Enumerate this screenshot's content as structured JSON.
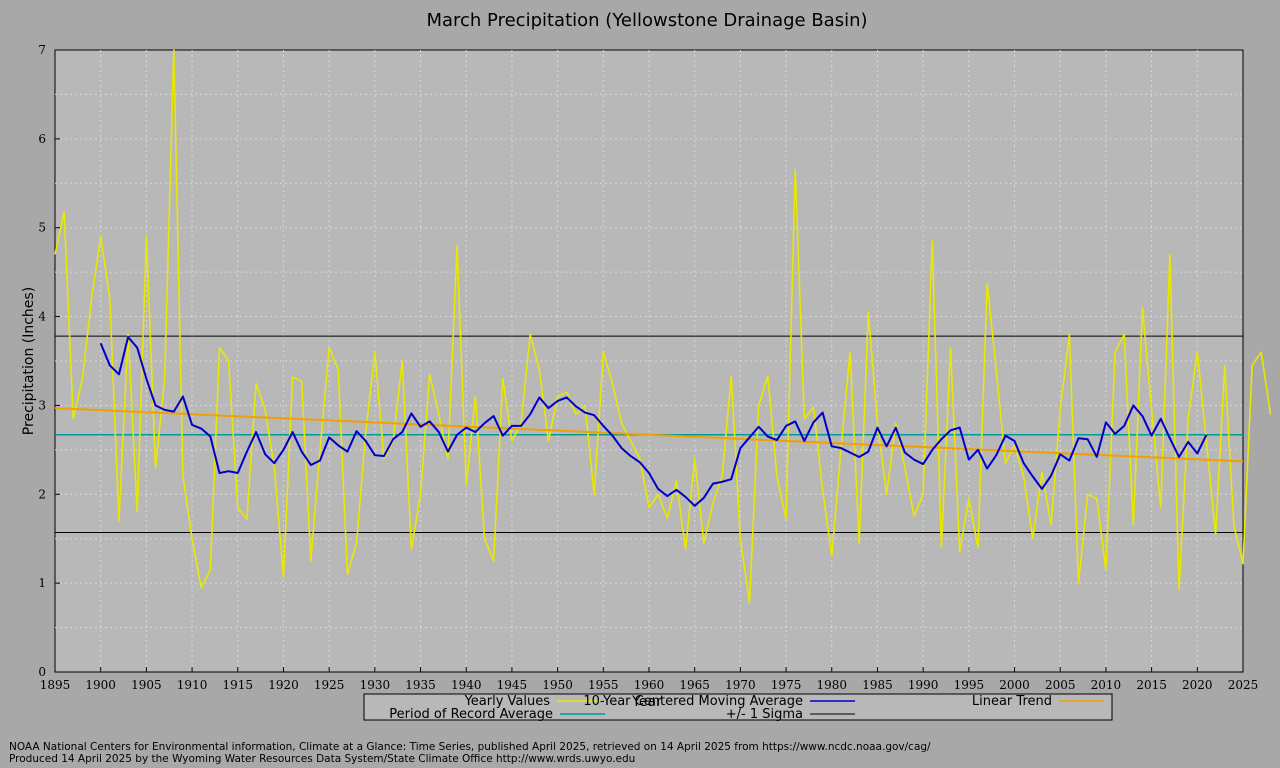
{
  "chart_data": {
    "type": "line",
    "title": "March Precipitation (Yellowstone Drainage Basin)",
    "xlabel": "Year",
    "ylabel": "Precipitation (Inches)",
    "xlim": [
      1895,
      2025
    ],
    "ylim": [
      0,
      7
    ],
    "x_ticks": [
      "1895",
      "1900",
      "1905",
      "1910",
      "1915",
      "1920",
      "1925",
      "1930",
      "1935",
      "1940",
      "1945",
      "1950",
      "1955",
      "1960",
      "1965",
      "1970",
      "1975",
      "1980",
      "1985",
      "1990",
      "1995",
      "2000",
      "2005",
      "2010",
      "2015",
      "2020",
      "2025"
    ],
    "y_ticks": [
      "0",
      "1",
      "2",
      "3",
      "4",
      "5",
      "6",
      "7"
    ],
    "grid": true,
    "legend_position": "bottom",
    "colors": {
      "yearly": "#e8e800",
      "moving_average": "#0000c8",
      "trend": "#f0a000",
      "period_average": "#009a9a",
      "sigma": "#000000",
      "plot_background": "#b8b8b8",
      "page_background": "#a8a8a8"
    },
    "legend": {
      "yearly": "Yearly Values",
      "moving_average": "10-Year Centered Moving Average",
      "trend": "Linear Trend",
      "period_average": "Period of Record Average",
      "sigma": "+/- 1 Sigma"
    },
    "yearly_start": 1895,
    "yearly_values": [
      4.7,
      5.18,
      2.85,
      3.3,
      4.2,
      4.9,
      4.2,
      1.7,
      3.8,
      1.8,
      4.9,
      2.3,
      3.3,
      7.0,
      2.2,
      1.5,
      0.95,
      1.15,
      3.65,
      3.5,
      1.85,
      1.72,
      3.25,
      2.95,
      2.3,
      1.07,
      3.32,
      3.27,
      1.25,
      2.5,
      3.65,
      3.4,
      1.1,
      1.45,
      2.7,
      3.6,
      2.4,
      2.6,
      3.5,
      1.38,
      2.0,
      3.35,
      2.9,
      2.4,
      4.8,
      2.1,
      3.1,
      1.5,
      1.25,
      3.3,
      2.6,
      2.8,
      3.8,
      3.4,
      2.6,
      3.1,
      3.15,
      2.9,
      3.0,
      2.0,
      3.6,
      3.25,
      2.8,
      2.6,
      2.4,
      1.85,
      2.0,
      1.73,
      2.15,
      1.38,
      2.4,
      1.45,
      1.9,
      2.2,
      3.33,
      1.5,
      0.78,
      3.0,
      3.33,
      2.2,
      1.72,
      5.65,
      2.85,
      2.98,
      2.05,
      1.3,
      2.5,
      3.6,
      1.45,
      4.05,
      2.8,
      2.0,
      2.8,
      2.3,
      1.75,
      2.0,
      4.85,
      1.4,
      3.65,
      1.35,
      1.95,
      1.4,
      4.37,
      3.4,
      2.35,
      2.55,
      2.2,
      1.5,
      2.25,
      1.65,
      2.95,
      3.8,
      1.0,
      2.0,
      1.95,
      1.15,
      3.6,
      3.8,
      1.65,
      4.1,
      2.95,
      1.85,
      4.7,
      0.93,
      2.85,
      3.6,
      2.6,
      1.55,
      3.45,
      1.65,
      1.22,
      3.45,
      3.6,
      2.9
    ],
    "moving_average_start": 1900,
    "moving_average_values": [
      3.7,
      3.45,
      3.35,
      3.77,
      3.65,
      3.3,
      3.0,
      2.95,
      2.93,
      3.1,
      2.78,
      2.74,
      2.65,
      2.24,
      2.26,
      2.24,
      2.48,
      2.7,
      2.45,
      2.35,
      2.5,
      2.7,
      2.48,
      2.33,
      2.38,
      2.64,
      2.55,
      2.48,
      2.71,
      2.6,
      2.44,
      2.43,
      2.62,
      2.7,
      2.91,
      2.76,
      2.82,
      2.7,
      2.48,
      2.67,
      2.75,
      2.7,
      2.8,
      2.88,
      2.66,
      2.77,
      2.77,
      2.9,
      3.09,
      2.97,
      3.05,
      3.09,
      2.99,
      2.92,
      2.89,
      2.77,
      2.66,
      2.52,
      2.43,
      2.36,
      2.24,
      2.06,
      1.98,
      2.05,
      1.97,
      1.87,
      1.96,
      2.12,
      2.14,
      2.17,
      2.52,
      2.64,
      2.76,
      2.65,
      2.61,
      2.77,
      2.82,
      2.6,
      2.81,
      2.92,
      2.54,
      2.52,
      2.47,
      2.42,
      2.48,
      2.75,
      2.54,
      2.75,
      2.47,
      2.39,
      2.34,
      2.5,
      2.62,
      2.72,
      2.75,
      2.39,
      2.5,
      2.29,
      2.44,
      2.66,
      2.6,
      2.35,
      2.2,
      2.06,
      2.21,
      2.45,
      2.38,
      2.63,
      2.62,
      2.42,
      2.81,
      2.68,
      2.77,
      3.0,
      2.88,
      2.66,
      2.85,
      2.63,
      2.42,
      2.59,
      2.46,
      2.67
    ],
    "trend_start": [
      1895,
      2.97
    ],
    "trend_end": [
      2025,
      2.37
    ],
    "period_average": 2.67,
    "sigma_upper": 3.78,
    "sigma_lower": 1.57
  },
  "footer": {
    "line1": "NOAA National Centers for Environmental information, Climate at a Glance: Time Series, published April 2025, retrieved on 14 April 2025 from https://www.ncdc.noaa.gov/cag/",
    "line2": "Produced 14 April 2025 by the Wyoming Water Resources Data System/State Climate Office http://www.wrds.uwyo.edu"
  }
}
